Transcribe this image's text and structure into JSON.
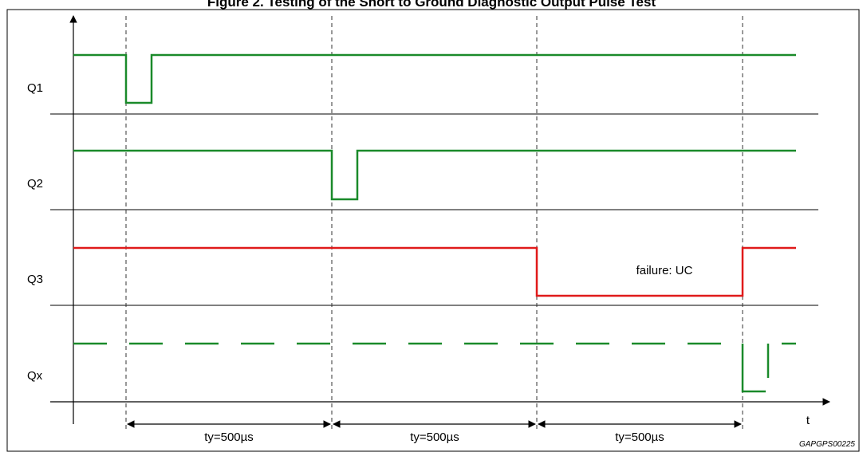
{
  "title": "Figure 2. Testing of the Short to Ground Diagnostic Output Pulse Test",
  "signals": [
    {
      "name": "Q1",
      "color": "#1a8a2a"
    },
    {
      "name": "Q2",
      "color": "#1a8a2a"
    },
    {
      "name": "Q3",
      "color": "#e01a1a"
    },
    {
      "name": "Qx",
      "color": "#1a8a2a"
    }
  ],
  "failure_label": "failure: UC",
  "intervals": [
    "ty=500µs",
    "ty=500µs",
    "ty=500µs"
  ],
  "time_axis_label": "t",
  "figure_code": "GAPGPS00225"
}
